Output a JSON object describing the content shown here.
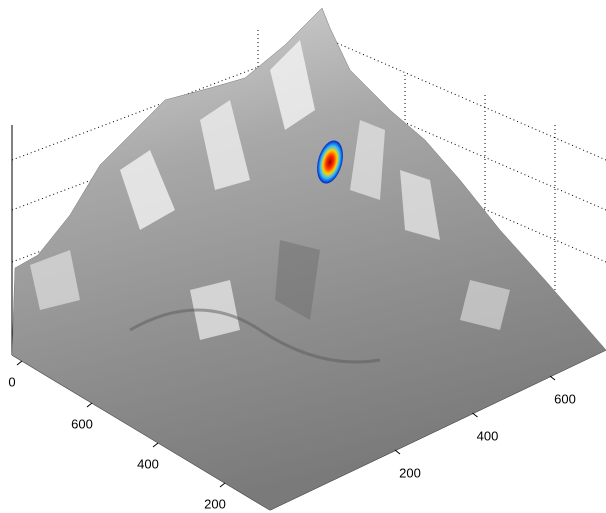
{
  "chart_data": {
    "type": "surface",
    "xticks": [
      200,
      400,
      600
    ],
    "yticks": [
      0,
      600,
      400,
      200
    ],
    "grid": true
  }
}
